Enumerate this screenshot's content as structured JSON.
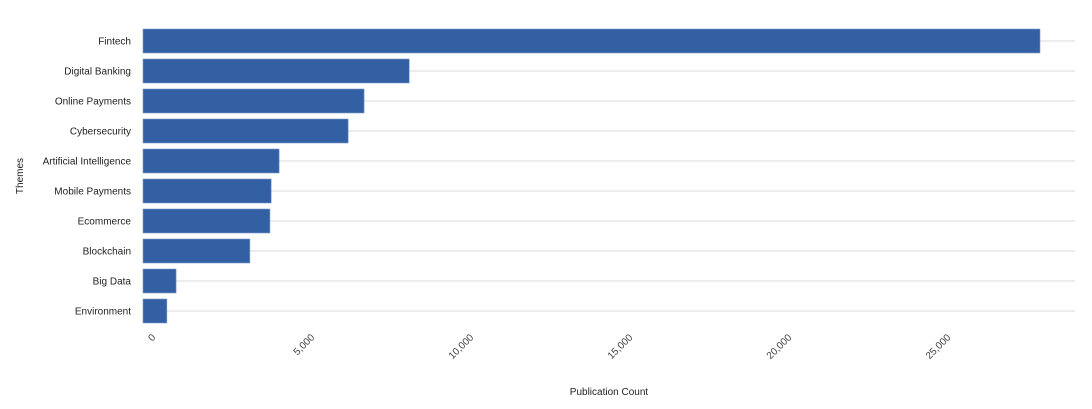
{
  "chart_data": {
    "type": "bar",
    "orientation": "horizontal",
    "categories": [
      "Fintech",
      "Digital Banking",
      "Online Payments",
      "Cybersecurity",
      "Artificial Intelligence",
      "Mobile Payments",
      "Ecommerce",
      "Blockchain",
      "Big Data",
      "Environment"
    ],
    "values": [
      28200,
      8370,
      6950,
      6450,
      4280,
      4030,
      3990,
      3360,
      1040,
      750
    ],
    "xlabel": "Publication Count",
    "ylabel": "Themes",
    "xlim": [
      0,
      29300
    ],
    "xticks": [
      0,
      5000,
      10000,
      15000,
      20000,
      25000
    ],
    "xtick_labels": [
      "0",
      "5,000",
      "10,000",
      "15,000",
      "20,000",
      "25,000"
    ],
    "grid": true,
    "bar_color": "#335fa3"
  }
}
